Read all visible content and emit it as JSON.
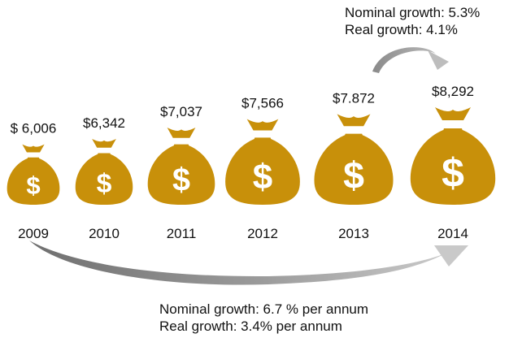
{
  "chart_data": {
    "type": "bar",
    "style": "pictograph-money-bags",
    "categories": [
      "2009",
      "2010",
      "2011",
      "2012",
      "2013",
      "2014"
    ],
    "values": [
      6006,
      6342,
      7037,
      7566,
      7872,
      8292
    ],
    "value_labels": [
      "$ 6,006",
      "$6,342",
      "$7,037",
      "$7,566",
      "$7.872",
      "$8,292"
    ],
    "title": "",
    "xlabel": "",
    "ylabel": "",
    "grid": false,
    "legend": "none",
    "annotations": {
      "top": [
        "Nominal growth: 5.3%",
        "Real growth: 4.1%"
      ],
      "bottom": [
        "Nominal growth: 6.7 % per annum",
        "Real growth: 3.4% per annum"
      ]
    },
    "colors": {
      "bag": "#c8900a",
      "symbol": "#ffffff",
      "arrow_light": "#c9c9c9",
      "arrow_dark": "#6f6f6f",
      "text": "#111111"
    }
  }
}
